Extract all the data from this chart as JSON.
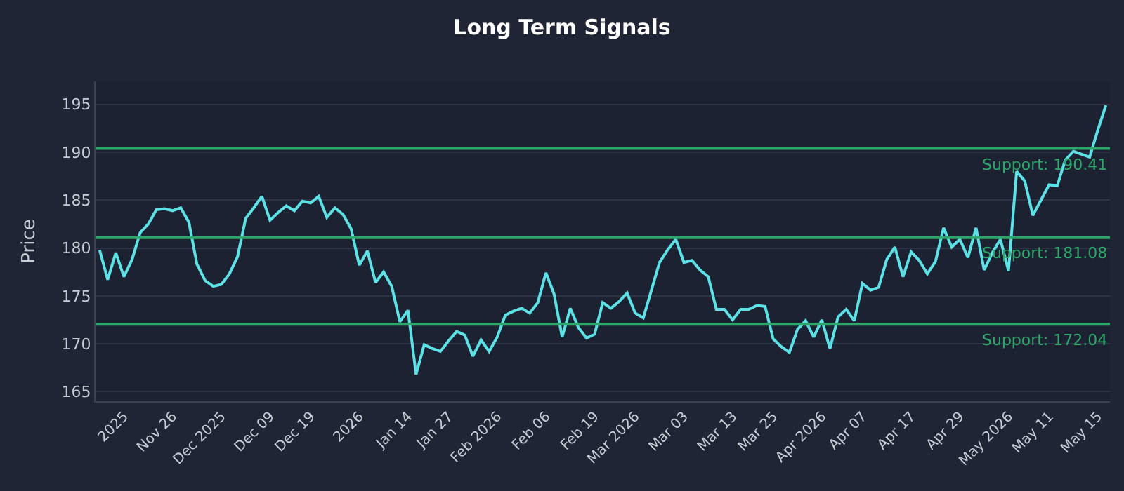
{
  "chart_data": {
    "type": "line",
    "title": "Long Term Signals",
    "ylabel": "Price",
    "categories": [
      null,
      null,
      null,
      "2025",
      null,
      null,
      null,
      null,
      null,
      "Nov 26",
      null,
      null,
      null,
      null,
      null,
      "Dec 2025",
      null,
      null,
      null,
      null,
      null,
      "Dec 09",
      null,
      null,
      null,
      null,
      "Dec 19",
      null,
      null,
      null,
      null,
      null,
      "2026",
      null,
      null,
      null,
      null,
      null,
      "Jan 14",
      null,
      null,
      null,
      null,
      "Jan 27",
      null,
      null,
      null,
      null,
      null,
      "Feb 2026",
      null,
      null,
      null,
      null,
      null,
      "Feb 06",
      null,
      null,
      null,
      null,
      null,
      "Feb 19",
      null,
      null,
      null,
      null,
      "Mar 2026",
      null,
      null,
      null,
      null,
      null,
      "Mar 03",
      null,
      null,
      null,
      null,
      null,
      "Mar 13",
      null,
      null,
      null,
      null,
      "Mar 25",
      null,
      null,
      null,
      null,
      null,
      "Apr 2026",
      null,
      null,
      null,
      null,
      "Apr 07",
      null,
      null,
      null,
      null,
      null,
      "Apr 17",
      null,
      null,
      null,
      null,
      null,
      "Apr 29",
      null,
      null,
      null,
      null,
      null,
      "May 2026",
      null,
      null,
      null,
      null,
      "May 11",
      null,
      null,
      null,
      null,
      null,
      "May 15",
      null
    ],
    "series": [
      {
        "color": "#5ce1e6",
        "values": [
          179.8,
          176.7,
          179.5,
          177.0,
          178.8,
          181.6,
          182.5,
          184.0,
          184.1,
          183.9,
          184.2,
          182.7,
          178.3,
          176.6,
          176.0,
          176.2,
          177.3,
          179.1,
          183.1,
          184.2,
          185.4,
          182.9,
          183.7,
          184.4,
          183.9,
          184.9,
          184.7,
          185.4,
          183.2,
          184.2,
          183.5,
          182.0,
          178.2,
          179.7,
          176.4,
          177.5,
          176.0,
          172.3,
          173.5,
          166.8,
          169.9,
          169.5,
          169.2,
          170.3,
          171.3,
          170.9,
          168.7,
          170.4,
          169.2,
          170.7,
          173.0,
          173.4,
          173.7,
          173.2,
          174.3,
          177.4,
          175.2,
          170.7,
          173.7,
          171.7,
          170.6,
          171.0,
          174.3,
          173.7,
          174.4,
          175.3,
          173.2,
          172.7,
          175.6,
          178.5,
          179.8,
          180.9,
          178.5,
          178.7,
          177.7,
          177.0,
          173.6,
          173.6,
          172.5,
          173.6,
          173.6,
          174.0,
          173.9,
          170.5,
          169.7,
          169.1,
          171.5,
          172.4,
          170.7,
          172.5,
          169.5,
          172.8,
          173.6,
          172.4,
          176.3,
          175.6,
          175.9,
          178.8,
          180.1,
          177.0,
          179.6,
          178.7,
          177.3,
          178.6,
          182.1,
          180.1,
          180.9,
          179.0,
          182.1,
          177.7,
          179.5,
          180.9,
          177.6,
          188.0,
          187.0,
          183.4,
          185.0,
          186.6,
          186.5,
          189.2,
          190.1,
          189.8,
          189.5,
          192.3,
          194.9
        ]
      }
    ],
    "ylim": [
      164,
      197.4
    ],
    "yticks": [
      165,
      170,
      175,
      180,
      185,
      190,
      195
    ],
    "grid": "y",
    "marker": "none",
    "line_style": "solid",
    "ref_lines": [
      {
        "axis": "y",
        "value": 190.41,
        "label": "Support: 190.41",
        "color": "#2ea86a"
      },
      {
        "axis": "y",
        "value": 181.08,
        "label": "Support: 181.08",
        "color": "#2ea86a"
      },
      {
        "axis": "y",
        "value": 172.04,
        "label": "Support: 172.04",
        "color": "#2ea86a"
      }
    ]
  }
}
